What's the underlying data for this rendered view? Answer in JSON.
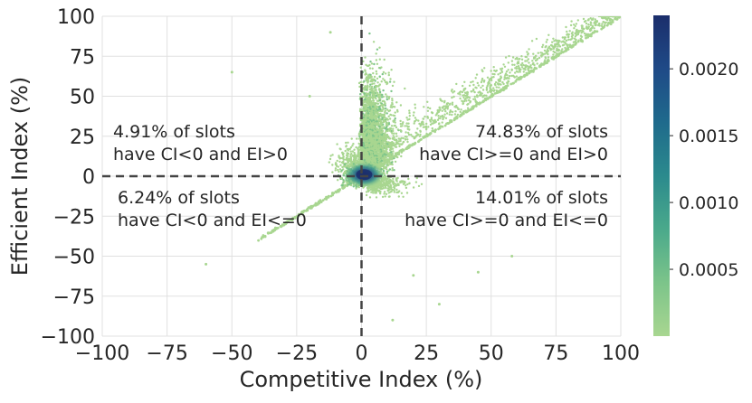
{
  "chart_data": {
    "type": "scatter",
    "title": "",
    "xlabel": "Competitive Index (%)",
    "ylabel": "Efficient Index (%)",
    "xlim": [
      -100,
      100
    ],
    "ylim": [
      -100,
      100
    ],
    "xticks": [
      -100,
      -75,
      -50,
      -25,
      0,
      25,
      50,
      75,
      100
    ],
    "yticks": [
      -100,
      -75,
      -50,
      -25,
      0,
      25,
      50,
      75,
      100
    ],
    "xtick_labels": [
      "−100",
      "−75",
      "−50",
      "−25",
      "0",
      "25",
      "50",
      "75",
      "100"
    ],
    "ytick_labels": [
      "−100",
      "−75",
      "−50",
      "−25",
      "0",
      "25",
      "50",
      "75",
      "100"
    ],
    "grid": true,
    "reference_lines": [
      {
        "orientation": "vertical",
        "x": 0,
        "style": "dashed"
      },
      {
        "orientation": "horizontal",
        "y": 0,
        "style": "dashed"
      }
    ],
    "diagonal_line": {
      "x": [
        -40,
        100
      ],
      "y": [
        -40,
        100
      ]
    },
    "quadrant_annotations": [
      {
        "quadrant": "upper-left",
        "lines": [
          "4.91% of slots",
          "have CI<0 and EI>0"
        ]
      },
      {
        "quadrant": "upper-right",
        "lines": [
          "74.83% of slots",
          "have CI>=0 and EI>0"
        ]
      },
      {
        "quadrant": "lower-left",
        "lines": [
          "6.24% of slots",
          "have CI<0 and EI<=0"
        ]
      },
      {
        "quadrant": "lower-right",
        "lines": [
          "14.01% of slots",
          "have CI>=0 and EI<=0"
        ]
      }
    ],
    "density": {
      "center": [
        0,
        0
      ],
      "main_cloud": {
        "x_range": [
          0,
          25
        ],
        "y_range": [
          0,
          100
        ]
      },
      "sparse_outliers": [
        {
          "x": -50,
          "y": 65
        },
        {
          "x": -12,
          "y": 90
        },
        {
          "x": -20,
          "y": 50
        },
        {
          "x": -60,
          "y": -55
        },
        {
          "x": 45,
          "y": -60
        },
        {
          "x": 58,
          "y": -50
        },
        {
          "x": 30,
          "y": -80
        },
        {
          "x": 12,
          "y": -90
        },
        {
          "x": 20,
          "y": -62
        }
      ]
    },
    "colorbar": {
      "min": 0.0,
      "max": 0.0024,
      "ticks": [
        0.0005,
        0.001,
        0.0015,
        0.002
      ],
      "tick_labels": [
        "0.0005",
        "0.0010",
        "0.0015",
        "0.0020"
      ],
      "colors": [
        "#a8d690",
        "#7cc48a",
        "#4aa98b",
        "#2b8a8d",
        "#1f6a8c",
        "#1f4a87",
        "#1b2e6b"
      ]
    }
  }
}
